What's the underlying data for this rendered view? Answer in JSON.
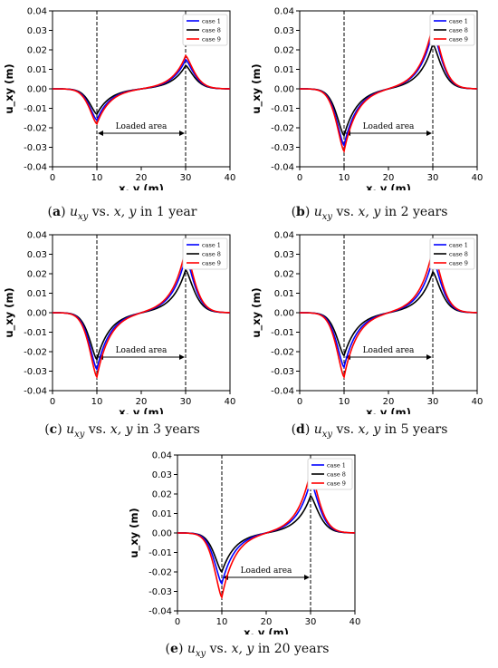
{
  "chart_data": [
    {
      "type": "line",
      "panel_letter": "a",
      "caption_mid": "vs.",
      "caption_tail": "in 1 year",
      "xlabel": "x, y (m)",
      "ylabel": "u_xy (m)",
      "xlim": [
        0,
        40
      ],
      "ylim": [
        -0.04,
        0.04
      ],
      "xticks": [
        "0",
        "10",
        "20",
        "30",
        "40"
      ],
      "yticks": [
        "-0.04",
        "-0.03",
        "-0.02",
        "-0.01",
        "0.00",
        "0.01",
        "0.02",
        "0.03",
        "0.04"
      ],
      "legend": "top-right",
      "vlines": [
        10,
        30
      ],
      "annotation": "Loaded area",
      "series": [
        {
          "name": "case 1",
          "color": "#0000ff",
          "peak_min": -0.016,
          "peak_max": 0.015
        },
        {
          "name": "case 8",
          "color": "#000000",
          "peak_min": -0.013,
          "peak_max": 0.012
        },
        {
          "name": "case 9",
          "color": "#ff0000",
          "peak_min": -0.018,
          "peak_max": 0.017
        }
      ]
    },
    {
      "type": "line",
      "panel_letter": "b",
      "caption_mid": "vs.",
      "caption_tail": "in 2 years",
      "xlabel": "x, y (m)",
      "ylabel": "u_xy (m)",
      "xlim": [
        0,
        40
      ],
      "ylim": [
        -0.04,
        0.04
      ],
      "xticks": [
        "0",
        "10",
        "20",
        "30",
        "40"
      ],
      "yticks": [
        "-0.04",
        "-0.03",
        "-0.02",
        "-0.01",
        "0.00",
        "0.01",
        "0.02",
        "0.03",
        "0.04"
      ],
      "legend": "top-right",
      "vlines": [
        10,
        30
      ],
      "annotation": "Loaded area",
      "series": [
        {
          "name": "case 1",
          "color": "#0000ff",
          "peak_min": -0.029,
          "peak_max": 0.03
        },
        {
          "name": "case 8",
          "color": "#000000",
          "peak_min": -0.024,
          "peak_max": 0.023
        },
        {
          "name": "case 9",
          "color": "#ff0000",
          "peak_min": -0.032,
          "peak_max": 0.033
        }
      ]
    },
    {
      "type": "line",
      "panel_letter": "c",
      "caption_mid": "vs.",
      "caption_tail": "in 3 years",
      "xlabel": "x, y (m)",
      "ylabel": "u_xy (m)",
      "xlim": [
        0,
        40
      ],
      "ylim": [
        -0.04,
        0.04
      ],
      "xticks": [
        "0",
        "10",
        "20",
        "30",
        "40"
      ],
      "yticks": [
        "-0.04",
        "-0.03",
        "-0.02",
        "-0.01",
        "0.00",
        "0.01",
        "0.02",
        "0.03",
        "0.04"
      ],
      "legend": "top-right",
      "vlines": [
        10,
        30
      ],
      "annotation": "Loaded area",
      "series": [
        {
          "name": "case 1",
          "color": "#0000ff",
          "peak_min": -0.029,
          "peak_max": 0.029
        },
        {
          "name": "case 8",
          "color": "#000000",
          "peak_min": -0.024,
          "peak_max": 0.022
        },
        {
          "name": "case 9",
          "color": "#ff0000",
          "peak_min": -0.033,
          "peak_max": 0.033
        }
      ]
    },
    {
      "type": "line",
      "panel_letter": "d",
      "caption_mid": "vs.",
      "caption_tail": "in 5 years",
      "xlabel": "x, y (m)",
      "ylabel": "u_xy (m)",
      "xlim": [
        0,
        40
      ],
      "ylim": [
        -0.04,
        0.04
      ],
      "xticks": [
        "0",
        "10",
        "20",
        "30",
        "40"
      ],
      "yticks": [
        "-0.04",
        "-0.03",
        "-0.02",
        "-0.01",
        "0.00",
        "0.01",
        "0.02",
        "0.03",
        "0.04"
      ],
      "legend": "top-right",
      "vlines": [
        10,
        30
      ],
      "annotation": "Loaded area",
      "series": [
        {
          "name": "case 1",
          "color": "#0000ff",
          "peak_min": -0.028,
          "peak_max": 0.028
        },
        {
          "name": "case 8",
          "color": "#000000",
          "peak_min": -0.022,
          "peak_max": 0.021
        },
        {
          "name": "case 9",
          "color": "#ff0000",
          "peak_min": -0.033,
          "peak_max": 0.033
        }
      ]
    },
    {
      "type": "line",
      "panel_letter": "e",
      "caption_mid": "vs.",
      "caption_tail": "in 20 years",
      "xlabel": "x, y (m)",
      "ylabel": "u_xy (m)",
      "xlim": [
        0,
        40
      ],
      "ylim": [
        -0.04,
        0.04
      ],
      "xticks": [
        "0",
        "10",
        "20",
        "30",
        "40"
      ],
      "yticks": [
        "-0.04",
        "-0.03",
        "-0.02",
        "-0.01",
        "0.00",
        "0.01",
        "0.02",
        "0.03",
        "0.04"
      ],
      "legend": "top-right",
      "vlines": [
        10,
        30
      ],
      "annotation": "Loaded area",
      "series": [
        {
          "name": "case 1",
          "color": "#0000ff",
          "peak_min": -0.026,
          "peak_max": 0.027
        },
        {
          "name": "case 8",
          "color": "#000000",
          "peak_min": -0.02,
          "peak_max": 0.019
        },
        {
          "name": "case 9",
          "color": "#ff0000",
          "peak_min": -0.033,
          "peak_max": 0.032
        }
      ]
    }
  ]
}
